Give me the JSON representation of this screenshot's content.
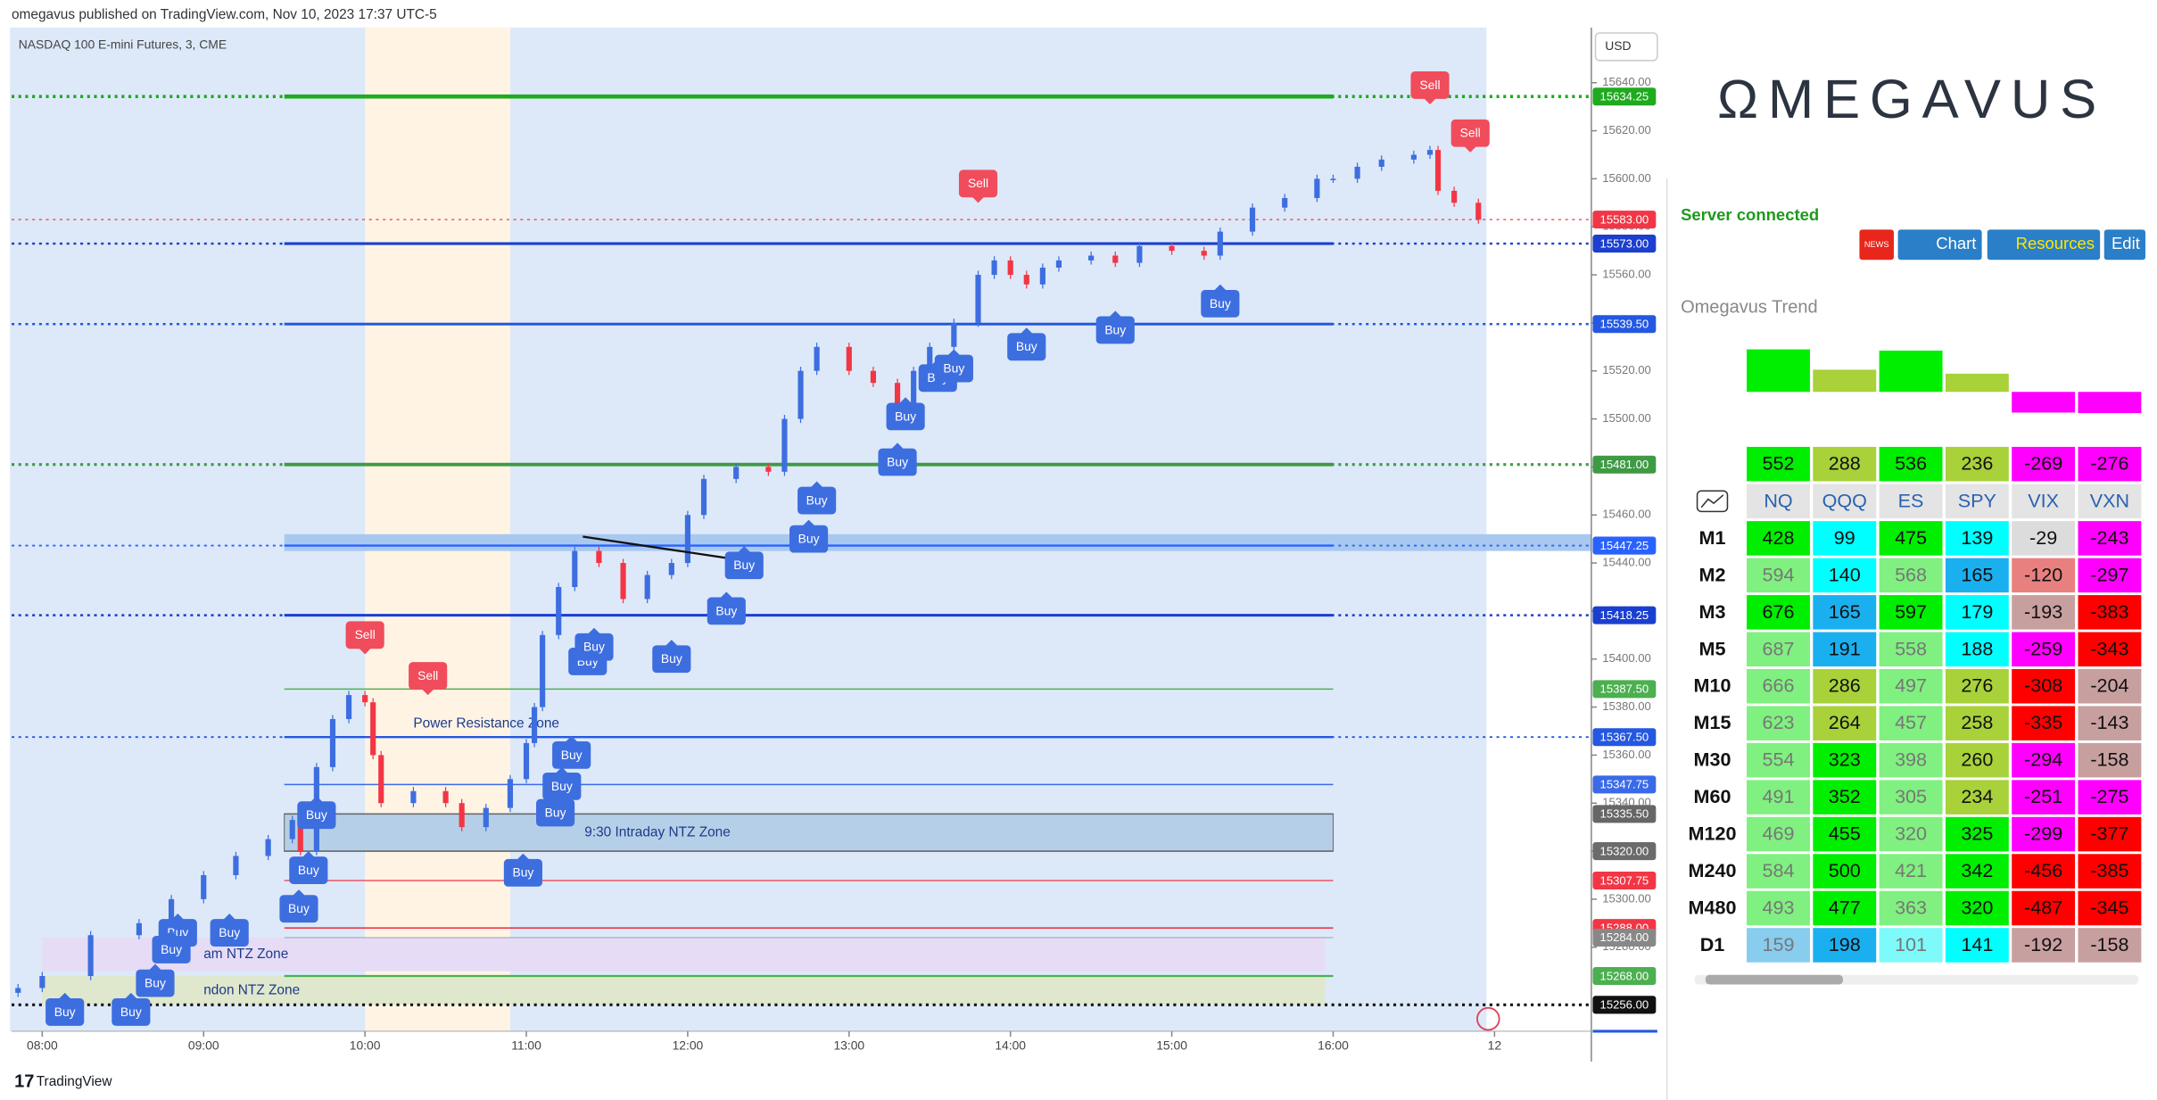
{
  "header": {
    "published": "omegavus published on TradingView.com, Nov 10, 2023 17:37 UTC-5",
    "symbol": "NASDAQ 100 E-mini Futures, 3, CME",
    "currency": "USD",
    "footer": "TradingView"
  },
  "chart_data": {
    "type": "candlestick",
    "x": [
      7.85,
      8.0,
      8.3,
      8.6,
      8.8,
      9.0,
      9.2,
      9.4,
      9.55,
      9.6,
      9.7,
      9.8,
      9.9,
      10.0,
      10.05,
      10.1,
      10.3,
      10.5,
      10.6,
      10.75,
      10.9,
      11.0,
      11.05,
      11.1,
      11.2,
      11.3,
      11.45,
      11.6,
      11.75,
      11.9,
      12.0,
      12.1,
      12.3,
      12.5,
      12.6,
      12.7,
      12.8,
      13.0,
      13.15,
      13.3,
      13.4,
      13.5,
      13.65,
      13.8,
      13.9,
      14.0,
      14.1,
      14.2,
      14.3,
      14.5,
      14.65,
      14.8,
      15.0,
      15.2,
      15.3,
      15.5,
      15.7,
      15.9,
      16.0,
      16.15,
      16.3,
      16.5,
      16.6,
      16.65,
      16.75,
      16.9
    ],
    "values": [
      15263,
      15268,
      15285,
      15290,
      15300,
      15310,
      15318,
      15325,
      15333,
      15320,
      15355,
      15375,
      15385,
      15382,
      15360,
      15340,
      15345,
      15340,
      15330,
      15338,
      15350,
      15365,
      15380,
      15410,
      15430,
      15445,
      15440,
      15425,
      15435,
      15440,
      15460,
      15475,
      15480,
      15478,
      15500,
      15520,
      15530,
      15520,
      15515,
      15500,
      15520,
      15530,
      15540,
      15560,
      15566,
      15560,
      15556,
      15563,
      15566,
      15568,
      15565,
      15572,
      15570,
      15568,
      15578,
      15588,
      15592,
      15600,
      15600,
      15605,
      15608,
      15610,
      15612,
      15595,
      15590,
      15583
    ],
    "xlim": [
      7.81,
      17.6
    ],
    "xticks": [
      {
        "value": 8,
        "label": "08:00"
      },
      {
        "value": 9,
        "label": "09:00"
      },
      {
        "value": 10,
        "label": "10:00"
      },
      {
        "value": 11,
        "label": "11:00"
      },
      {
        "value": 12,
        "label": "12:00"
      },
      {
        "value": 13,
        "label": "13:00"
      },
      {
        "value": 14,
        "label": "14:00"
      },
      {
        "value": 15,
        "label": "15:00"
      },
      {
        "value": 16,
        "label": "16:00"
      },
      {
        "value": 17,
        "label": "12"
      }
    ],
    "ylim": [
      15245,
      15663
    ],
    "yticks": [
      {
        "value": 15640,
        "label": "15640.00"
      },
      {
        "value": 15620,
        "label": "15620.00"
      },
      {
        "value": 15600,
        "label": "15600.00"
      },
      {
        "value": 15580,
        "label": "15580.00"
      },
      {
        "value": 15560,
        "label": "15560.00"
      },
      {
        "value": 15540,
        "label": "15540.00"
      },
      {
        "value": 15520,
        "label": "15520.00"
      },
      {
        "value": 15500,
        "label": "15500.00"
      },
      {
        "value": 15480,
        "label": "15480.00"
      },
      {
        "value": 15460,
        "label": "15460.00"
      },
      {
        "value": 15440,
        "label": "15440.00"
      },
      {
        "value": 15420,
        "label": "15420.00"
      },
      {
        "value": 15400,
        "label": "15400.00"
      },
      {
        "value": 15380,
        "label": "15380.00"
      },
      {
        "value": 15360,
        "label": "15360.00"
      },
      {
        "value": 15340,
        "label": "15340.00"
      },
      {
        "value": 15320,
        "label": "15320.00"
      },
      {
        "value": 15300,
        "label": "15300.00"
      },
      {
        "value": 15280,
        "label": "15280.00"
      }
    ],
    "up_color": "#3d6ee0",
    "down_color": "#f23645",
    "session": [
      7.8,
      16.95
    ],
    "highlight": [
      10.0,
      10.9
    ],
    "levels": [
      {
        "value": 15634.25,
        "label": "15634.25",
        "color": "#1faa1f",
        "style": "mid-dotted",
        "width": 3
      },
      {
        "value": 15583,
        "label": "15583.00",
        "color": "#f23645",
        "style": "dotted",
        "width": 0.6
      },
      {
        "value": 15573,
        "label": "15573.00",
        "color": "#1c3fcf",
        "style": "mid-dotted",
        "width": 2
      },
      {
        "value": 15539.5,
        "label": "15539.50",
        "color": "#2458e0",
        "style": "mid-dotted",
        "width": 2
      },
      {
        "value": 15481,
        "label": "15481.00",
        "color": "#3f9a44",
        "style": "mid-dotted",
        "width": 2.5
      },
      {
        "value": 15447.25,
        "label": "15447.25",
        "color": "#2962ff",
        "style": "mid-dotted",
        "width": 1.5
      },
      {
        "value": 15418.25,
        "label": "15418.25",
        "color": "#1a3fd0",
        "style": "mid-dotted",
        "width": 2
      },
      {
        "value": 15387.5,
        "label": "15387.50",
        "color": "#4caf50",
        "style": "mid",
        "width": 1
      },
      {
        "value": 15367.5,
        "label": "15367.50",
        "color": "#2458e0",
        "style": "mid-dotted",
        "width": 1.5
      },
      {
        "value": 15347.75,
        "label": "15347.75",
        "color": "#3a6ae8",
        "style": "mid",
        "width": 1
      },
      {
        "value": 15335.5,
        "label": "15335.50",
        "color": "#666666",
        "style": "mid",
        "width": 1
      },
      {
        "value": 15320,
        "label": "15320.00",
        "color": "#6b6b6b",
        "style": "mid",
        "width": 1
      },
      {
        "value": 15307.75,
        "label": "15307.75",
        "color": "#f23645",
        "style": "mid",
        "width": 0.8
      },
      {
        "value": 15288,
        "label": "15288.00",
        "color": "#f23645",
        "style": "mid",
        "width": 1
      },
      {
        "value": 15284,
        "label": "15284.00",
        "color": "#888888",
        "style": "mid",
        "width": 0.5
      },
      {
        "value": 15268,
        "label": "15268.00",
        "color": "#4caf50",
        "style": "mid",
        "width": 1.5
      },
      {
        "value": 15256,
        "label": "15256.00",
        "color": "#111111",
        "style": "dotted",
        "width": 2.5
      }
    ],
    "zones": [
      {
        "label": "9:30 Intraday NTZ Zone",
        "top": 15335.5,
        "bottom": 15320,
        "start": 9.5,
        "end": 16.0,
        "color": "#b6cfe8"
      },
      {
        "label": "am NTZ Zone",
        "top": 15284,
        "bottom": 15270,
        "start": 8.0,
        "end": 15.95,
        "color": "#e6dcf6"
      },
      {
        "label": "ndon NTZ Zone",
        "top": 15268,
        "bottom": 15256,
        "start": 8.0,
        "end": 15.95,
        "color": "#dfe8cc"
      }
    ],
    "band": {
      "top": 15452,
      "bottom": 15445,
      "start": 9.5,
      "color": "#a9c8f0"
    },
    "annotations": [
      {
        "label": "Power Resistance Zone",
        "hour": 10.3,
        "price": 15373
      }
    ],
    "trendline": {
      "x": [
        11.35,
        12.45
      ],
      "values": [
        15451,
        15440
      ]
    },
    "markers": [
      {
        "label": "Sell",
        "hour": 10.0,
        "price": 15410
      },
      {
        "label": "Sell",
        "hour": 10.39,
        "price": 15393
      },
      {
        "label": "Sell",
        "hour": 13.8,
        "price": 15598
      },
      {
        "label": "Sell",
        "hour": 16.6,
        "price": 15639
      },
      {
        "label": "Sell",
        "hour": 16.85,
        "price": 15619
      },
      {
        "label": "Buy",
        "hour": 8.14,
        "price": 15253
      },
      {
        "label": "Buy",
        "hour": 8.55,
        "price": 15253
      },
      {
        "label": "Buy",
        "hour": 8.7,
        "price": 15265
      },
      {
        "label": "Buy",
        "hour": 8.84,
        "price": 15286
      },
      {
        "label": "Buy",
        "hour": 8.8,
        "price": 15279
      },
      {
        "label": "Buy",
        "hour": 9.16,
        "price": 15286
      },
      {
        "label": "Buy",
        "hour": 9.59,
        "price": 15296
      },
      {
        "label": "Buy",
        "hour": 9.65,
        "price": 15312
      },
      {
        "label": "Buy",
        "hour": 9.7,
        "price": 15335
      },
      {
        "label": "Buy",
        "hour": 10.98,
        "price": 15311
      },
      {
        "label": "Buy",
        "hour": 11.18,
        "price": 15336
      },
      {
        "label": "Buy",
        "hour": 11.22,
        "price": 15347
      },
      {
        "label": "Buy",
        "hour": 11.28,
        "price": 15360
      },
      {
        "label": "Buy",
        "hour": 11.38,
        "price": 15399
      },
      {
        "label": "Buy",
        "hour": 11.42,
        "price": 15405
      },
      {
        "label": "Buy",
        "hour": 11.9,
        "price": 15400
      },
      {
        "label": "Buy",
        "hour": 12.24,
        "price": 15420
      },
      {
        "label": "Buy",
        "hour": 12.35,
        "price": 15439
      },
      {
        "label": "Buy",
        "hour": 12.75,
        "price": 15450
      },
      {
        "label": "Buy",
        "hour": 12.8,
        "price": 15466
      },
      {
        "label": "Buy",
        "hour": 13.3,
        "price": 15482
      },
      {
        "label": "Buy",
        "hour": 13.35,
        "price": 15501
      },
      {
        "label": "Buy",
        "hour": 13.55,
        "price": 15517
      },
      {
        "label": "Buy",
        "hour": 13.65,
        "price": 15521
      },
      {
        "label": "Buy",
        "hour": 14.1,
        "price": 15530
      },
      {
        "label": "Buy",
        "hour": 14.65,
        "price": 15537
      },
      {
        "label": "Buy",
        "hour": 15.3,
        "price": 15548
      }
    ]
  },
  "panel": {
    "logo": "ΩMEGAVUS",
    "status": "Server connected",
    "buttons": [
      "NEWS",
      "Chart",
      "Resources",
      "Edit"
    ],
    "title": "Omegavus Trend",
    "columns": [
      "NQ",
      "QQQ",
      "ES",
      "SPY",
      "VIX",
      "VXN"
    ],
    "summary": {
      "values": [
        552,
        288,
        536,
        236,
        -269,
        -276
      ],
      "colors": [
        "#00ee00",
        "#a8d13a",
        "#00ee00",
        "#a8d13a",
        "#ff00ff",
        "#ff00ff"
      ]
    },
    "rows": [
      {
        "label": "M1",
        "values": [
          428,
          99,
          475,
          139,
          -29,
          -243
        ],
        "colors": [
          "#00ee00",
          "#00ffff",
          "#00ee00",
          "#00ffff",
          "#dcdcdc",
          "#ff00ff"
        ]
      },
      {
        "label": "M2",
        "values": [
          594,
          140,
          568,
          165,
          -120,
          -297
        ],
        "colors": [
          "#80f080",
          "#00ffff",
          "#80f080",
          "#1ab0f0",
          "#e88080",
          "#ff00ff"
        ]
      },
      {
        "label": "M3",
        "values": [
          676,
          165,
          597,
          179,
          -193,
          -383
        ],
        "colors": [
          "#00ee00",
          "#1ab0f0",
          "#00ee00",
          "#00ffff",
          "#c89f9f",
          "#ff0000"
        ]
      },
      {
        "label": "M5",
        "values": [
          687,
          191,
          558,
          188,
          -259,
          -343
        ],
        "colors": [
          "#80f080",
          "#1ab0f0",
          "#80f080",
          "#00ffff",
          "#ff00ff",
          "#ff0000"
        ]
      },
      {
        "label": "M10",
        "values": [
          666,
          286,
          497,
          276,
          -308,
          -204
        ],
        "colors": [
          "#80f080",
          "#a8d13a",
          "#80f080",
          "#a8d13a",
          "#ff0000",
          "#c89f9f"
        ]
      },
      {
        "label": "M15",
        "values": [
          623,
          264,
          457,
          258,
          -335,
          -143
        ],
        "colors": [
          "#80f080",
          "#a8d13a",
          "#80f080",
          "#a8d13a",
          "#ff0000",
          "#c89f9f"
        ]
      },
      {
        "label": "M30",
        "values": [
          554,
          323,
          398,
          260,
          -294,
          -158
        ],
        "colors": [
          "#80f080",
          "#00ee00",
          "#80f080",
          "#a8d13a",
          "#ff00ff",
          "#c89f9f"
        ]
      },
      {
        "label": "M60",
        "values": [
          491,
          352,
          305,
          234,
          -251,
          -275
        ],
        "colors": [
          "#80f080",
          "#00ee00",
          "#80f080",
          "#a8d13a",
          "#ff00ff",
          "#ff00ff"
        ]
      },
      {
        "label": "M120",
        "values": [
          469,
          455,
          320,
          325,
          -299,
          -377
        ],
        "colors": [
          "#80f080",
          "#00ee00",
          "#80f080",
          "#00ee00",
          "#ff00ff",
          "#ff0000"
        ]
      },
      {
        "label": "M240",
        "values": [
          584,
          500,
          421,
          342,
          -456,
          -385
        ],
        "colors": [
          "#80f080",
          "#00ee00",
          "#80f080",
          "#00ee00",
          "#ff0000",
          "#ff0000"
        ]
      },
      {
        "label": "M480",
        "values": [
          493,
          477,
          363,
          320,
          -487,
          -345
        ],
        "colors": [
          "#80f080",
          "#00ee00",
          "#80f080",
          "#00ee00",
          "#ff0000",
          "#ff0000"
        ]
      },
      {
        "label": "D1",
        "values": [
          159,
          198,
          101,
          141,
          -192,
          -158
        ],
        "colors": [
          "#88ccee",
          "#1ab0f0",
          "#7ffafa",
          "#00ffff",
          "#c89f9f",
          "#c89f9f"
        ]
      }
    ]
  }
}
